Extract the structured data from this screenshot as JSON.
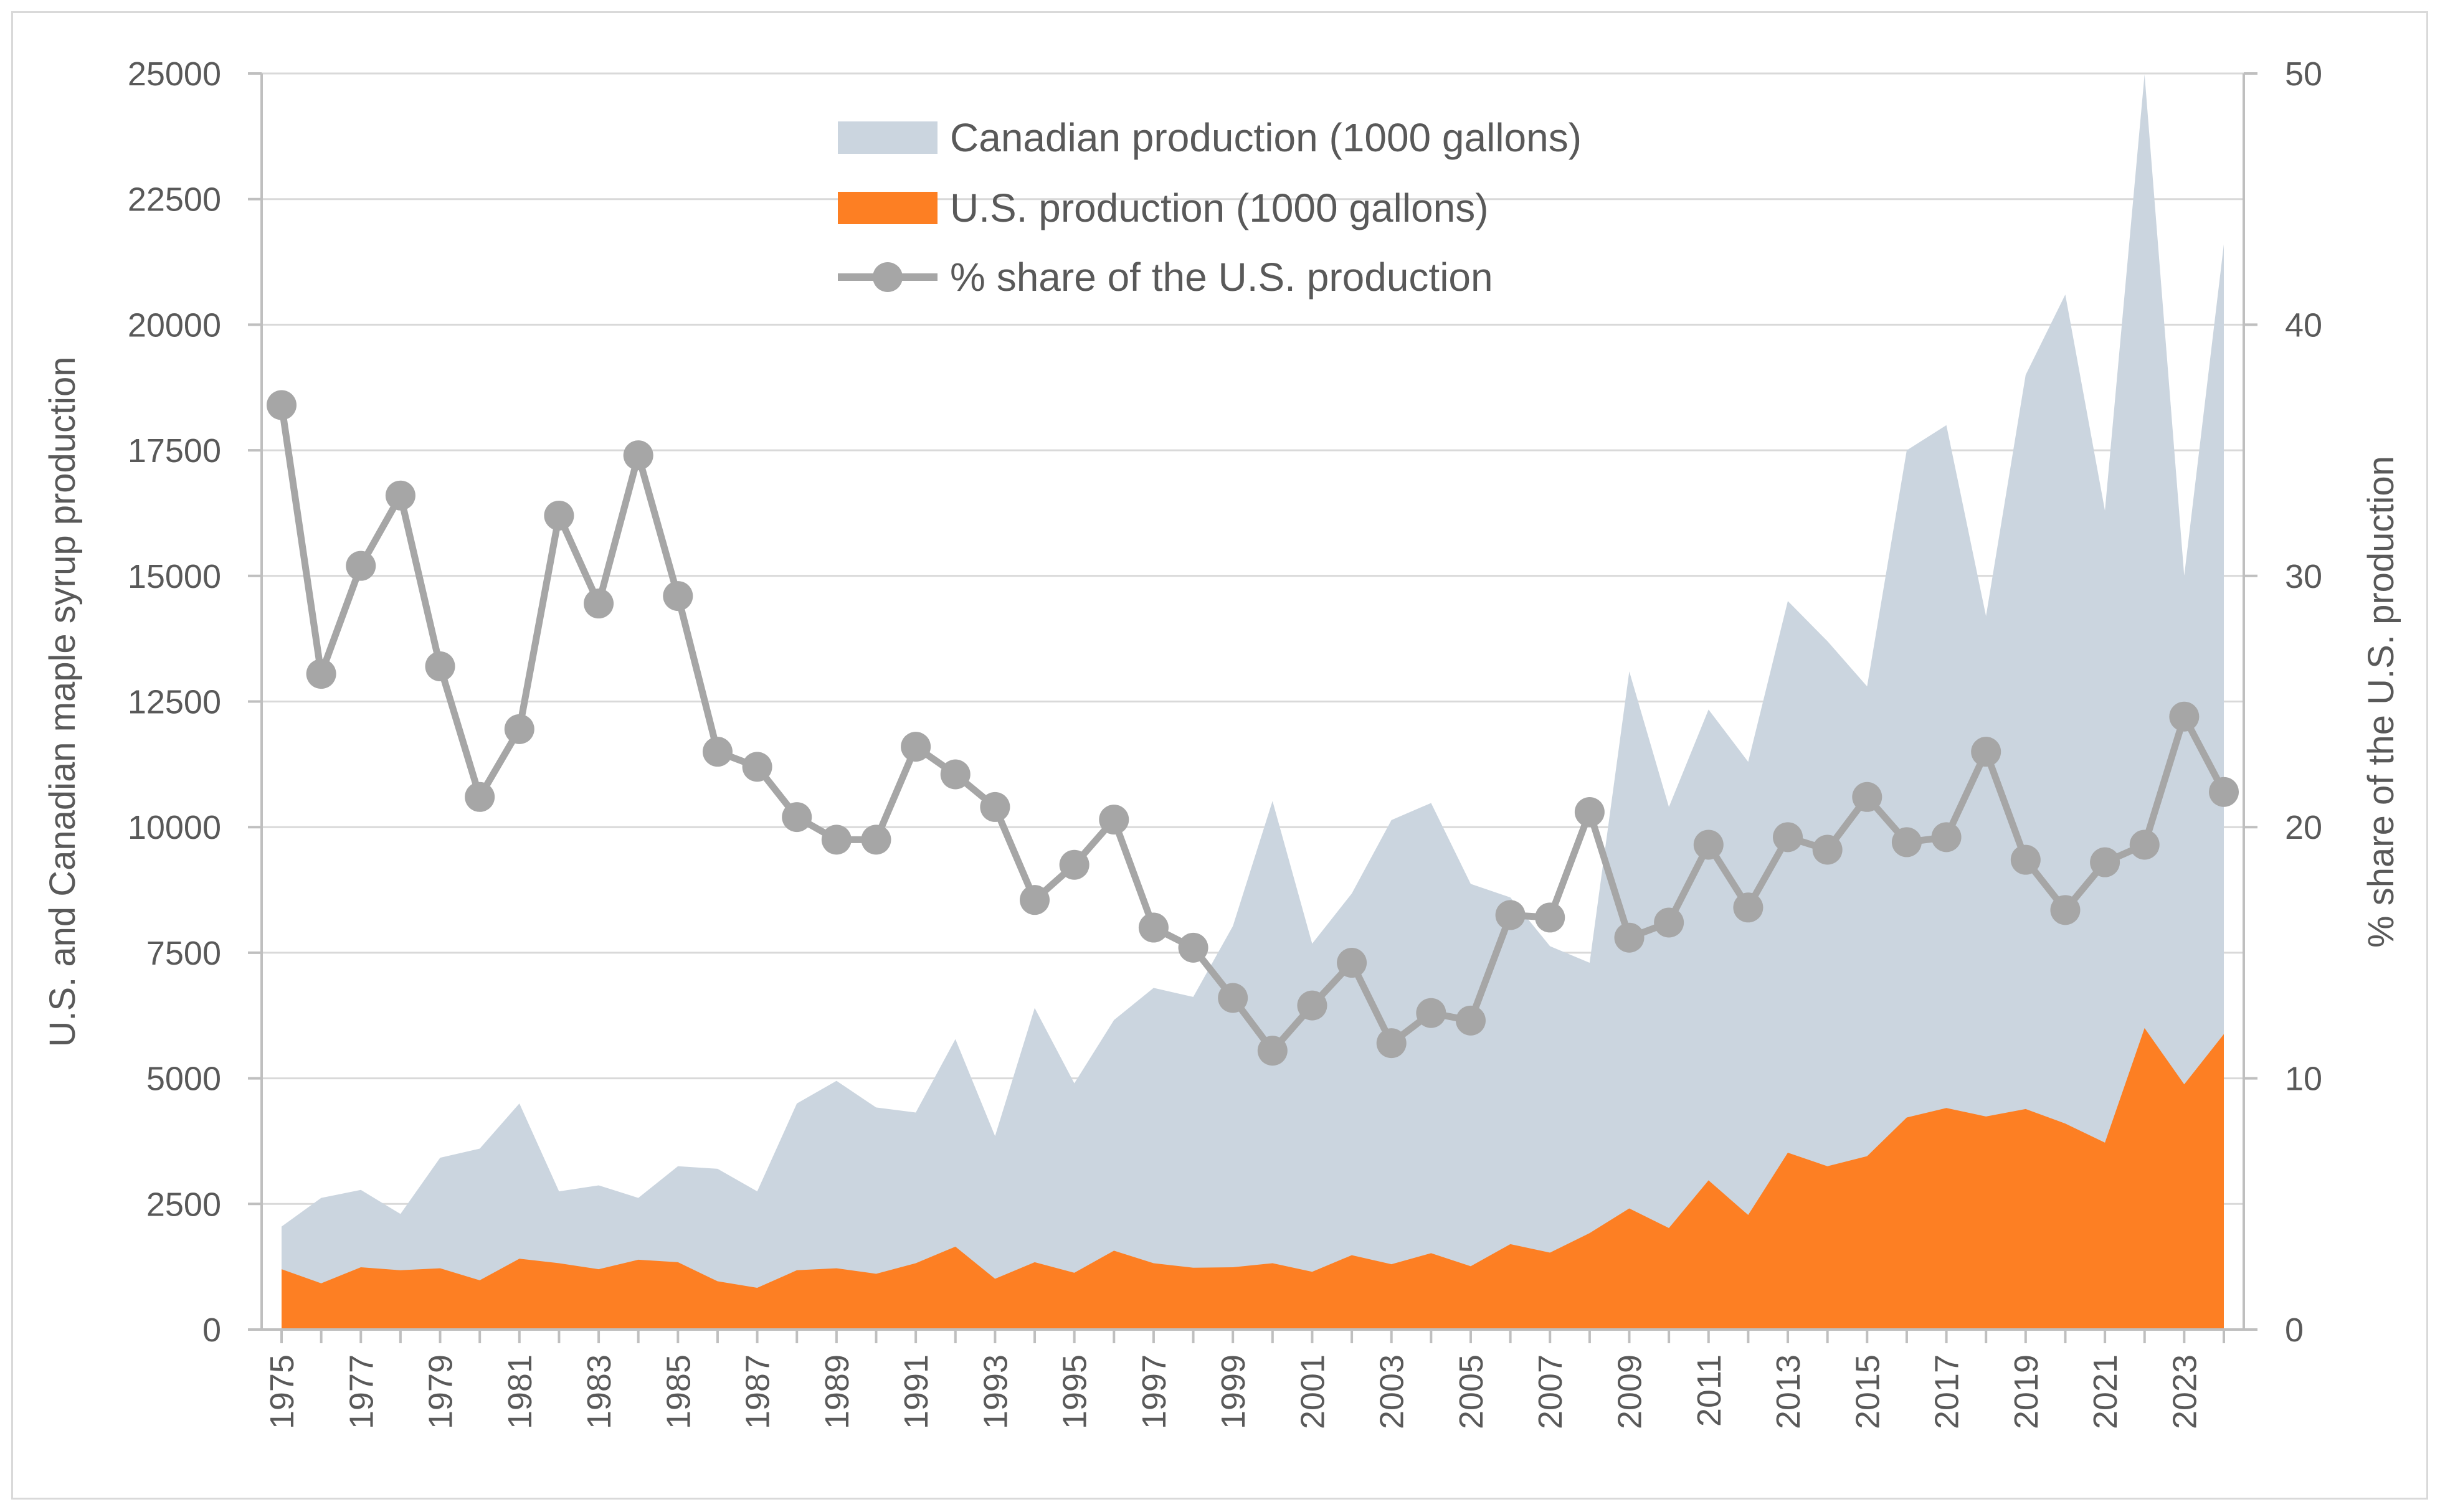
{
  "chart_data": {
    "type": "area",
    "title": "",
    "x": [
      1975,
      1976,
      1977,
      1978,
      1979,
      1980,
      1981,
      1982,
      1983,
      1984,
      1985,
      1986,
      1987,
      1988,
      1989,
      1990,
      1991,
      1992,
      1993,
      1994,
      1995,
      1996,
      1997,
      1998,
      1999,
      2000,
      2001,
      2002,
      2003,
      2004,
      2005,
      2006,
      2007,
      2008,
      2009,
      2010,
      2011,
      2012,
      2013,
      2014,
      2015,
      2016,
      2017,
      2018,
      2019,
      2020,
      2021,
      2022,
      2023,
      2024
    ],
    "x_tick_labels": [
      "1975",
      "1977",
      "1979",
      "1981",
      "1983",
      "1985",
      "1987",
      "1989",
      "1991",
      "1993",
      "1995",
      "1997",
      "1999",
      "2001",
      "2003",
      "2005",
      "2007",
      "2009",
      "2011",
      "2013",
      "2015",
      "2017",
      "2019",
      "2021",
      "2023"
    ],
    "ylabel": "U.S. and Canadian maple syrup production",
    "ylim": [
      0,
      25000
    ],
    "y_ticks": [
      "0",
      "2500",
      "5000",
      "7500",
      "10000",
      "12500",
      "15000",
      "17500",
      "20000",
      "22500",
      "25000"
    ],
    "y2label": "% share of the U.S. production",
    "y2lim": [
      0,
      50
    ],
    "y2_ticks": [
      "0",
      "10",
      "20",
      "30",
      "40",
      "50"
    ],
    "series": [
      {
        "name": "Canadian production (1000 gallons)",
        "kind": "area",
        "axis": "left",
        "color": "#cbd5df",
        "values": [
          2050,
          2620,
          2780,
          2300,
          3420,
          3600,
          4500,
          2750,
          2870,
          2620,
          3250,
          3200,
          2750,
          4500,
          4950,
          4420,
          4320,
          5780,
          3850,
          6400,
          4900,
          6160,
          6800,
          6620,
          8030,
          10520,
          7680,
          8680,
          10140,
          10480,
          8870,
          8600,
          7630,
          7300,
          13100,
          10400,
          12340,
          11300,
          14500,
          13700,
          12800,
          17500,
          18000,
          14200,
          19000,
          20600,
          16300,
          24980,
          15000,
          21600
        ]
      },
      {
        "name": "U.S. production (1000 gallons)",
        "kind": "area",
        "axis": "left",
        "color": "#fd7f23",
        "values": [
          1200,
          920,
          1240,
          1180,
          1220,
          980,
          1410,
          1320,
          1200,
          1390,
          1340,
          960,
          830,
          1180,
          1220,
          1110,
          1320,
          1650,
          1010,
          1340,
          1130,
          1570,
          1320,
          1230,
          1240,
          1320,
          1150,
          1480,
          1300,
          1520,
          1260,
          1700,
          1530,
          1920,
          2410,
          2020,
          2970,
          2280,
          3520,
          3250,
          3450,
          4220,
          4410,
          4240,
          4390,
          4100,
          3720,
          6000,
          4880,
          5880
        ]
      },
      {
        "name": "% share of the U.S. production",
        "kind": "line",
        "axis": "right",
        "color": "#a6a6a6",
        "values": [
          36.8,
          26.1,
          30.4,
          33.2,
          26.4,
          21.2,
          23.9,
          32.4,
          28.9,
          34.8,
          29.2,
          23.0,
          22.4,
          20.4,
          19.5,
          19.5,
          23.2,
          22.1,
          20.8,
          17.1,
          18.5,
          20.3,
          16.0,
          15.2,
          13.2,
          11.1,
          12.9,
          14.6,
          11.4,
          12.6,
          12.3,
          16.5,
          16.4,
          20.6,
          15.6,
          16.2,
          19.3,
          16.8,
          19.6,
          19.1,
          21.2,
          19.4,
          19.6,
          23.0,
          18.7,
          16.7,
          18.6,
          19.3,
          24.4,
          21.4
        ]
      }
    ],
    "legend_position": "top-center",
    "grid": "horizontal"
  }
}
